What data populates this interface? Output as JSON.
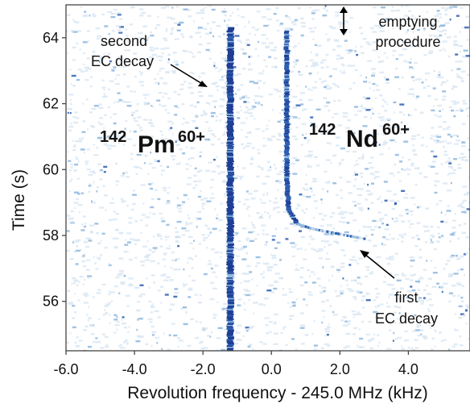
{
  "chart_data": {
    "type": "heatmap",
    "title": "",
    "xlabel": "Revolution frequency - 245.0 MHz (kHz)",
    "ylabel": "Time (s)",
    "xlim": [
      -6.0,
      5.8
    ],
    "ylim": [
      54.5,
      65.0
    ],
    "xticks": [
      -6.0,
      -4.0,
      -2.0,
      0.0,
      2.0,
      4.0
    ],
    "xtick_labels": [
      "-6.0",
      "-4.0",
      "-2.0",
      "0.0",
      "2.0",
      "4.0"
    ],
    "yticks": [
      56,
      58,
      60,
      62,
      64
    ],
    "ytick_labels": [
      "56",
      "58",
      "60",
      "62",
      "64"
    ],
    "grid": false,
    "colormap": [
      "#ffffff",
      "#dbe7f3",
      "#8fb9de",
      "#2f5fb0",
      "#1e3f95"
    ],
    "traces": [
      {
        "species": "142Pm60+",
        "points": [
          {
            "freq_khz": -1.2,
            "time_s": 54.5
          },
          {
            "freq_khz": -1.2,
            "time_s": 64.3
          }
        ]
      },
      {
        "species": "142Nd60+",
        "points": [
          {
            "freq_khz": 0.45,
            "time_s": 64.2
          },
          {
            "freq_khz": 0.45,
            "time_s": 59.8
          },
          {
            "freq_khz": 0.5,
            "time_s": 58.8
          },
          {
            "freq_khz": 0.75,
            "time_s": 58.35
          },
          {
            "freq_khz": 1.2,
            "time_s": 58.2
          },
          {
            "freq_khz": 2.7,
            "time_s": 57.9
          }
        ]
      }
    ],
    "annotations": {
      "pm_label": {
        "base": "142",
        "element": "Pm",
        "charge": "60+"
      },
      "nd_label": {
        "base": "142",
        "element": "Nd",
        "charge": "60+"
      },
      "second_decay": {
        "line1": "second",
        "line2": "EC decay",
        "target": {
          "freq_khz": -1.8,
          "time_s": 62.5
        }
      },
      "first_decay": {
        "line1": "first",
        "line2": "EC decay",
        "target": {
          "freq_khz": 2.2,
          "time_s": 57.6
        }
      },
      "emptying": {
        "line1": "emptying",
        "line2": "procedure"
      }
    }
  }
}
